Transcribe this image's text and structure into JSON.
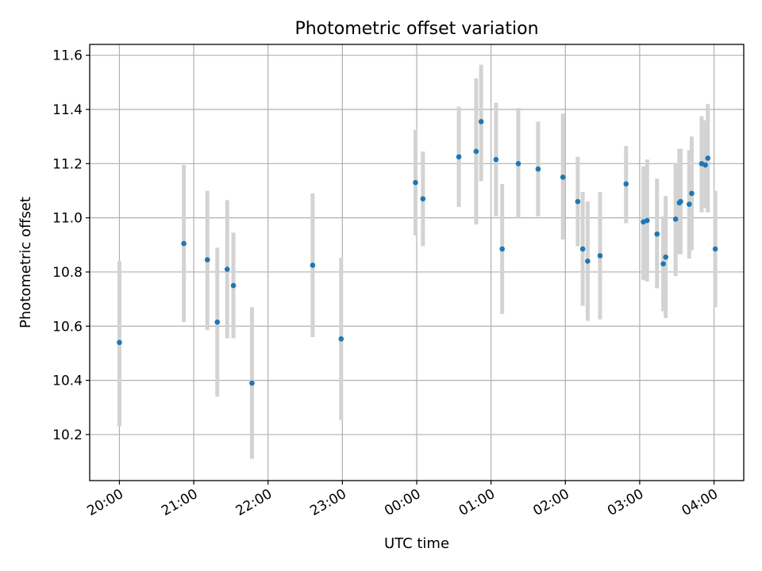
{
  "chart_data": {
    "type": "scatter",
    "title": "Photometric offset variation",
    "xlabel": "UTC time",
    "ylabel": "Photometric offset",
    "x_tick_labels": [
      "20:00",
      "21:00",
      "22:00",
      "23:00",
      "00:00",
      "01:00",
      "02:00",
      "03:00",
      "04:00"
    ],
    "x_ticks_hours": [
      0,
      1,
      2,
      3,
      4,
      5,
      6,
      7,
      8
    ],
    "x_axis_origin_time": "20:00",
    "xlim_hours": [
      -0.4,
      8.4
    ],
    "y_ticks": [
      10.2,
      10.4,
      10.6,
      10.8,
      11.0,
      11.2,
      11.4,
      11.6
    ],
    "y_tick_labels": [
      "10.2",
      "10.4",
      "10.6",
      "10.8",
      "11.0",
      "11.2",
      "11.4",
      "11.6"
    ],
    "ylim": [
      10.03,
      11.64
    ],
    "grid": true,
    "marker_color": "#1f77b4",
    "errorbar_color": "#d3d3d3",
    "points": [
      {
        "t": "20:00",
        "y": 10.54,
        "lo": 10.23,
        "hi": 10.84
      },
      {
        "t": "20:52",
        "y": 10.905,
        "lo": 10.615,
        "hi": 11.195
      },
      {
        "t": "21:11",
        "y": 10.845,
        "lo": 10.585,
        "hi": 11.1
      },
      {
        "t": "21:19",
        "y": 10.615,
        "lo": 10.34,
        "hi": 10.89
      },
      {
        "t": "21:27",
        "y": 10.81,
        "lo": 10.555,
        "hi": 11.065
      },
      {
        "t": "21:32",
        "y": 10.75,
        "lo": 10.555,
        "hi": 10.945
      },
      {
        "t": "21:47",
        "y": 10.39,
        "lo": 10.11,
        "hi": 10.67
      },
      {
        "t": "22:36",
        "y": 10.825,
        "lo": 10.56,
        "hi": 11.09
      },
      {
        "t": "22:59",
        "y": 10.553,
        "lo": 10.253,
        "hi": 10.853
      },
      {
        "t": "23:59",
        "y": 11.13,
        "lo": 10.935,
        "hi": 11.325
      },
      {
        "t": "00:05",
        "y": 11.07,
        "lo": 10.895,
        "hi": 11.245
      },
      {
        "t": "00:34",
        "y": 11.225,
        "lo": 11.04,
        "hi": 11.41
      },
      {
        "t": "00:48",
        "y": 11.245,
        "lo": 10.975,
        "hi": 11.515
      },
      {
        "t": "00:52",
        "y": 11.355,
        "lo": 11.135,
        "hi": 11.565
      },
      {
        "t": "01:04",
        "y": 11.215,
        "lo": 11.005,
        "hi": 11.425
      },
      {
        "t": "01:09",
        "y": 10.885,
        "lo": 10.645,
        "hi": 11.125
      },
      {
        "t": "01:22",
        "y": 11.2,
        "lo": 11.0,
        "hi": 11.405
      },
      {
        "t": "01:38",
        "y": 11.18,
        "lo": 11.005,
        "hi": 11.355
      },
      {
        "t": "01:58",
        "y": 11.15,
        "lo": 10.92,
        "hi": 11.385
      },
      {
        "t": "02:10",
        "y": 11.06,
        "lo": 10.895,
        "hi": 11.225
      },
      {
        "t": "02:14",
        "y": 10.885,
        "lo": 10.675,
        "hi": 11.095
      },
      {
        "t": "02:18",
        "y": 10.84,
        "lo": 10.62,
        "hi": 11.06
      },
      {
        "t": "02:28",
        "y": 10.86,
        "lo": 10.625,
        "hi": 11.095
      },
      {
        "t": "02:49",
        "y": 11.125,
        "lo": 10.98,
        "hi": 11.265
      },
      {
        "t": "03:03",
        "y": 10.985,
        "lo": 10.77,
        "hi": 11.19
      },
      {
        "t": "03:06",
        "y": 10.99,
        "lo": 10.765,
        "hi": 11.215
      },
      {
        "t": "03:14",
        "y": 10.94,
        "lo": 10.74,
        "hi": 11.145
      },
      {
        "t": "03:19",
        "y": 10.83,
        "lo": 10.655,
        "hi": 11.005
      },
      {
        "t": "03:21",
        "y": 10.855,
        "lo": 10.63,
        "hi": 11.08
      },
      {
        "t": "03:29",
        "y": 10.995,
        "lo": 10.785,
        "hi": 11.2
      },
      {
        "t": "03:32",
        "y": 11.055,
        "lo": 10.865,
        "hi": 11.255
      },
      {
        "t": "03:33",
        "y": 11.06,
        "lo": 10.865,
        "hi": 11.255
      },
      {
        "t": "03:40",
        "y": 11.05,
        "lo": 10.85,
        "hi": 11.25
      },
      {
        "t": "03:42",
        "y": 11.09,
        "lo": 10.88,
        "hi": 11.3
      },
      {
        "t": "03:50",
        "y": 11.2,
        "lo": 11.02,
        "hi": 11.375
      },
      {
        "t": "03:53",
        "y": 11.195,
        "lo": 11.035,
        "hi": 11.36
      },
      {
        "t": "03:55",
        "y": 11.22,
        "lo": 11.02,
        "hi": 11.42
      },
      {
        "t": "04:01",
        "y": 10.885,
        "lo": 10.67,
        "hi": 11.1
      }
    ]
  }
}
